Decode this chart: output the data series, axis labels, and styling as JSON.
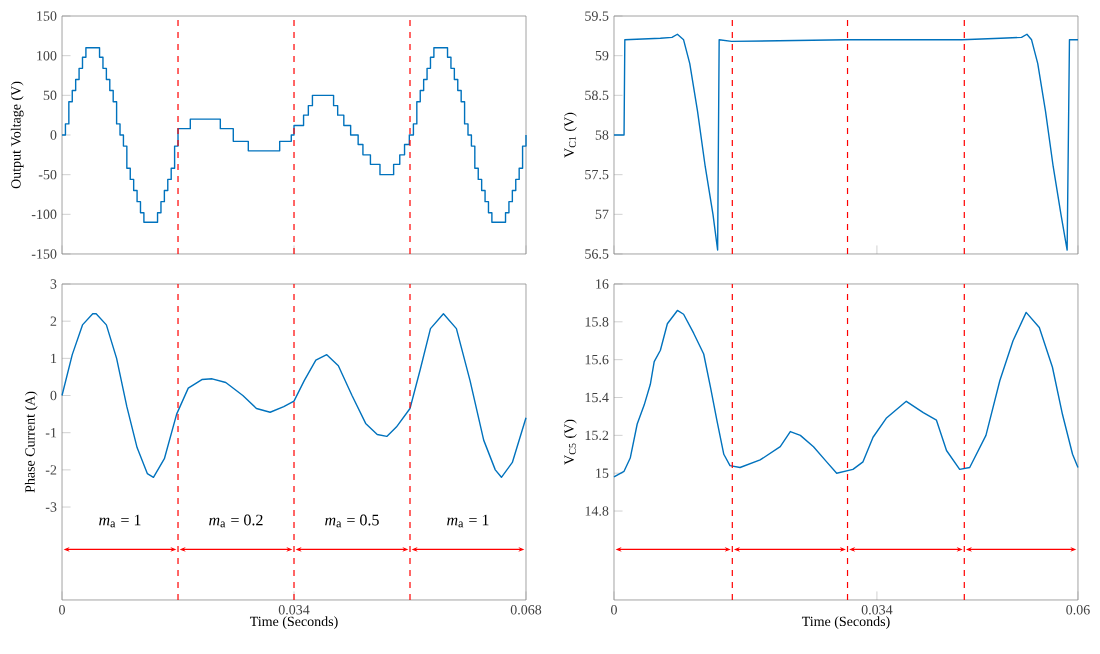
{
  "chart_data": [
    {
      "type": "step",
      "ylabel": "Output Voltage (V)",
      "color": "#0072bd",
      "xlim": [
        0,
        0.068
      ],
      "xticks": [
        0,
        0.034,
        0.068
      ],
      "ylim": [
        -150,
        150
      ],
      "yticks": [
        -150,
        -100,
        -50,
        0,
        50,
        100,
        150
      ],
      "tick_labels": "y",
      "x": [
        0,
        0.0005,
        0.001,
        0.0015,
        0.002,
        0.0025,
        0.003,
        0.0035,
        0.004,
        0.0045,
        0.005,
        0.0055,
        0.006,
        0.0065,
        0.007,
        0.0075,
        0.008,
        0.0085,
        0.009,
        0.0095,
        0.01,
        0.0105,
        0.011,
        0.0115,
        0.012,
        0.0125,
        0.013,
        0.0135,
        0.014,
        0.0145,
        0.015,
        0.0155,
        0.016,
        0.0165,
        0.017,
        0.0188,
        0.0232,
        0.0251,
        0.0273,
        0.0319,
        0.0336,
        0.034,
        0.0354,
        0.0361,
        0.0367,
        0.0398,
        0.0404,
        0.0413,
        0.0423,
        0.0434,
        0.0441,
        0.0452,
        0.0466,
        0.0486,
        0.0495,
        0.0502,
        0.0509,
        0.051,
        0.0515,
        0.052,
        0.0525,
        0.053,
        0.0535,
        0.054,
        0.0545,
        0.055,
        0.0555,
        0.056,
        0.0565,
        0.057,
        0.0575,
        0.058,
        0.0585,
        0.059,
        0.0595,
        0.06,
        0.0605,
        0.061,
        0.0615,
        0.062,
        0.0625,
        0.063,
        0.0635,
        0.064,
        0.0645,
        0.065,
        0.0655,
        0.066,
        0.0665,
        0.067,
        0.0675,
        0.068
      ],
      "values": [
        0,
        14,
        42,
        56,
        70,
        84,
        98,
        110,
        110,
        110,
        110,
        98,
        84,
        70,
        56,
        42,
        14,
        0,
        -14,
        -42,
        -56,
        -70,
        -84,
        -98,
        -110,
        -110,
        -110,
        -110,
        -98,
        -84,
        -70,
        -56,
        -42,
        -14,
        8,
        20,
        8,
        -8,
        -20,
        -8,
        0,
        12,
        25,
        37,
        50,
        37,
        25,
        12,
        0,
        -12,
        -25,
        -37,
        -50,
        -37,
        -25,
        -12,
        0,
        0,
        14,
        42,
        56,
        70,
        84,
        98,
        110,
        110,
        110,
        110,
        98,
        84,
        70,
        56,
        42,
        14,
        0,
        -14,
        -42,
        -56,
        -70,
        -84,
        -98,
        -110,
        -110,
        -110,
        -110,
        -98,
        -84,
        -70,
        -56,
        -42,
        -14,
        0
      ],
      "ref_lines": [
        {
          "axis": "x",
          "value": 0.017,
          "color": "#ff0000",
          "line_style": "dashed"
        },
        {
          "axis": "x",
          "value": 0.034,
          "color": "#ff0000",
          "line_style": "dashed"
        },
        {
          "axis": "x",
          "value": 0.051,
          "color": "#ff0000",
          "line_style": "dashed"
        }
      ]
    },
    {
      "type": "line",
      "ylabel": "Phase Current (A)",
      "xlabel": "Time (Seconds)",
      "color": "#0072bd",
      "xlim": [
        0,
        0.068
      ],
      "xticks": [
        0,
        0.034,
        0.068
      ],
      "ylim": [
        -5.5,
        3
      ],
      "yticks": [
        -3,
        -2,
        -1,
        0,
        1,
        2,
        3
      ],
      "x": [
        0,
        0.0015,
        0.003,
        0.0045,
        0.005,
        0.0065,
        0.008,
        0.0095,
        0.011,
        0.0125,
        0.0134,
        0.015,
        0.0168,
        0.0185,
        0.0205,
        0.022,
        0.024,
        0.0265,
        0.0285,
        0.0305,
        0.0325,
        0.034,
        0.0355,
        0.0372,
        0.0388,
        0.0405,
        0.0425,
        0.0445,
        0.0462,
        0.0476,
        0.049,
        0.051,
        0.0525,
        0.054,
        0.0559,
        0.0578,
        0.0598,
        0.0618,
        0.0635,
        0.0644,
        0.066,
        0.068
      ],
      "values": [
        0,
        1.1,
        1.9,
        2.2,
        2.2,
        1.9,
        1.0,
        -0.3,
        -1.4,
        -2.1,
        -2.2,
        -1.7,
        -0.5,
        0.2,
        0.43,
        0.45,
        0.35,
        0.0,
        -0.35,
        -0.45,
        -0.3,
        -0.15,
        0.4,
        0.95,
        1.1,
        0.8,
        0.0,
        -0.75,
        -1.05,
        -1.1,
        -0.85,
        -0.35,
        0.7,
        1.8,
        2.2,
        1.8,
        0.4,
        -1.2,
        -2.0,
        -2.2,
        -1.8,
        -0.6
      ],
      "ref_lines": [
        {
          "axis": "x",
          "value": 0.017,
          "color": "#ff0000",
          "line_style": "dashed"
        },
        {
          "axis": "x",
          "value": 0.034,
          "color": "#ff0000",
          "line_style": "dashed"
        },
        {
          "axis": "x",
          "value": 0.051,
          "color": "#ff0000",
          "line_style": "dashed"
        }
      ],
      "annotations": [
        "*m*$_{a}$ = 1",
        "*m*$_{a}$ = 0.2",
        "*m*$_{a}$ = 0.5",
        "*m*$_{a}$ = 1"
      ]
    },
    {
      "type": "line",
      "ylabel": "V$_{C1}$ (V)",
      "color": "#0072bd",
      "xlim": [
        0,
        0.06
      ],
      "xticks": [
        0,
        0.034,
        0.06
      ],
      "ylim": [
        56.5,
        59.5
      ],
      "yticks": [
        56.5,
        57,
        57.5,
        58,
        58.5,
        59,
        59.5
      ],
      "tick_labels": "y",
      "x": [
        0,
        0.0013,
        0.0014,
        0.006,
        0.0075,
        0.0082,
        0.009,
        0.0098,
        0.0108,
        0.0118,
        0.0128,
        0.0134,
        0.0136,
        0.0152,
        0.03,
        0.045,
        0.05,
        0.0527,
        0.0534,
        0.054,
        0.0548,
        0.0558,
        0.0568,
        0.0578,
        0.0586,
        0.0589,
        0.06
      ],
      "values": [
        58,
        58,
        59.2,
        59.22,
        59.23,
        59.27,
        59.2,
        58.9,
        58.3,
        57.6,
        57.0,
        56.55,
        59.2,
        59.18,
        59.2,
        59.2,
        59.22,
        59.23,
        59.27,
        59.2,
        58.9,
        58.3,
        57.6,
        57.0,
        56.55,
        59.2,
        59.2
      ],
      "ref_lines": [
        {
          "axis": "x",
          "value": 0.0153,
          "color": "#ff0000",
          "line_style": "dashed"
        },
        {
          "axis": "x",
          "value": 0.0302,
          "color": "#ff0000",
          "line_style": "dashed"
        },
        {
          "axis": "x",
          "value": 0.0453,
          "color": "#ff0000",
          "line_style": "dashed"
        }
      ]
    },
    {
      "type": "line",
      "ylabel": "V$_{C5}$ (V)",
      "xlabel": "Time (Seconds)",
      "color": "#0072bd",
      "xlim": [
        0,
        0.06
      ],
      "xticks": [
        0,
        0.034,
        0.06
      ],
      "ylim": [
        14.33,
        16
      ],
      "yticks": [
        14.8,
        15,
        15.2,
        15.4,
        15.6,
        15.8,
        16
      ],
      "x": [
        0,
        0.0013,
        0.0021,
        0.003,
        0.0039,
        0.0047,
        0.0052,
        0.006,
        0.0069,
        0.0082,
        0.009,
        0.0103,
        0.0116,
        0.0125,
        0.0133,
        0.0142,
        0.015,
        0.0163,
        0.0189,
        0.0215,
        0.0228,
        0.0241,
        0.0258,
        0.0275,
        0.0288,
        0.0309,
        0.0322,
        0.0335,
        0.0352,
        0.0378,
        0.04,
        0.0417,
        0.043,
        0.0447,
        0.046,
        0.0481,
        0.0499,
        0.0516,
        0.0533,
        0.055,
        0.0567,
        0.058,
        0.0593,
        0.06
      ],
      "values": [
        14.98,
        15.01,
        15.08,
        15.26,
        15.36,
        15.47,
        15.59,
        15.65,
        15.79,
        15.86,
        15.84,
        15.74,
        15.63,
        15.45,
        15.28,
        15.1,
        15.04,
        15.03,
        15.07,
        15.14,
        15.22,
        15.2,
        15.14,
        15.06,
        15.0,
        15.02,
        15.06,
        15.19,
        15.29,
        15.38,
        15.32,
        15.28,
        15.12,
        15.02,
        15.03,
        15.2,
        15.49,
        15.7,
        15.85,
        15.77,
        15.56,
        15.31,
        15.1,
        15.03
      ],
      "ref_lines": [
        {
          "axis": "x",
          "value": 0.0153,
          "color": "#ff0000",
          "line_style": "dashed"
        },
        {
          "axis": "x",
          "value": 0.0302,
          "color": "#ff0000",
          "line_style": "dashed"
        },
        {
          "axis": "x",
          "value": 0.0453,
          "color": "#ff0000",
          "line_style": "dashed"
        }
      ]
    }
  ]
}
